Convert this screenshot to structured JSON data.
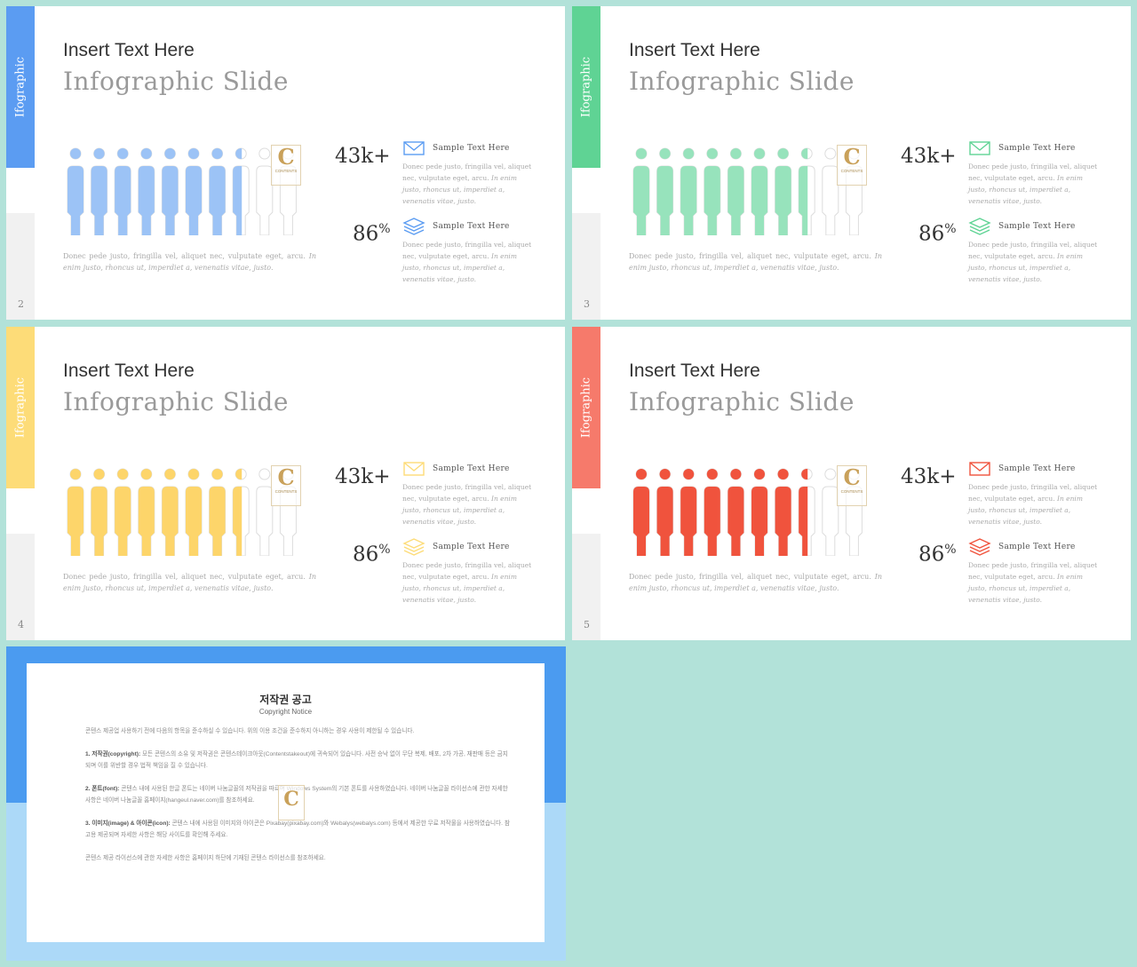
{
  "slides": [
    {
      "number": "2",
      "side_label": "Ifographic",
      "accent": "#5b9cf2",
      "accent_light": "#9cc3f6",
      "title": "Insert Text Here",
      "subtitle": "Infographic Slide",
      "people_filled": 7.5,
      "people_total": 10,
      "stat1": "43k+",
      "stat2_num": "86",
      "stat2_unit": "%",
      "desc_plain": "Donec pede justo, fringilla vel, aliquet nec, vulputate eget, arcu. ",
      "desc_italic": "In enim justo, rhoncus ut, imperdiet a, venenatis vitae, justo.",
      "items": [
        {
          "icon": "mail-icon",
          "title": "Sample Text Here",
          "plain": "Donec pede justo, fringilla vel, aliquet nec, vulputate eget, arcu. ",
          "italic": "In enim justo, rhoncus ut, imperdiet a, venenatis vitae, justo."
        },
        {
          "icon": "layers-icon",
          "title": "Sample Text Here",
          "plain": "Donec pede justo, fringilla vel, aliquet nec, vulputate eget, arcu. ",
          "italic": "In enim justo, rhoncus ut, imperdiet a, venenatis vitae, justo."
        }
      ]
    },
    {
      "number": "3",
      "side_label": "Ifographic",
      "accent": "#5fd394",
      "accent_light": "#97e3bc",
      "title": "Insert Text Here",
      "subtitle": "Infographic Slide",
      "people_filled": 7.5,
      "people_total": 10,
      "stat1": "43k+",
      "stat2_num": "86",
      "stat2_unit": "%",
      "desc_plain": "Donec pede justo, fringilla vel, aliquet nec, vulputate eget, arcu. ",
      "desc_italic": "In enim justo, rhoncus ut, imperdiet a, venenatis vitae, justo.",
      "items": [
        {
          "icon": "mail-icon",
          "title": "Sample Text Here",
          "plain": "Donec pede justo, fringilla vel, aliquet nec, vulputate eget, arcu. ",
          "italic": "In enim justo, rhoncus ut, imperdiet a, venenatis vitae, justo."
        },
        {
          "icon": "layers-icon",
          "title": "Sample Text Here",
          "plain": "Donec pede justo, fringilla vel, aliquet nec, vulputate eget, arcu. ",
          "italic": "In enim justo, rhoncus ut, imperdiet a, venenatis vitae, justo."
        }
      ]
    },
    {
      "number": "4",
      "side_label": "Ifographic",
      "accent": "#fddc78",
      "accent_light": "#fdd56a",
      "title": "Insert Text Here",
      "subtitle": "Infographic Slide",
      "people_filled": 7.5,
      "people_total": 10,
      "stat1": "43k+",
      "stat2_num": "86",
      "stat2_unit": "%",
      "desc_plain": "Donec pede justo, fringilla vel, aliquet nec, vulputate eget, arcu. ",
      "desc_italic": "In enim justo, rhoncus ut, imperdiet a, venenatis vitae, justo.",
      "items": [
        {
          "icon": "mail-icon",
          "title": "Sample Text Here",
          "plain": "Donec pede justo, fringilla vel, aliquet nec, vulputate eget, arcu. ",
          "italic": "In enim justo, rhoncus ut, imperdiet a, venenatis vitae, justo."
        },
        {
          "icon": "layers-icon",
          "title": "Sample Text Here",
          "plain": "Donec pede justo, fringilla vel, aliquet nec, vulputate eget, arcu. ",
          "italic": "In enim justo, rhoncus ut, imperdiet a, venenatis vitae, justo."
        }
      ]
    },
    {
      "number": "5",
      "side_label": "Ifographic",
      "accent": "#f67a6b",
      "accent_light": "#f0533d",
      "title": "Insert Text Here",
      "subtitle": "Infographic Slide",
      "people_filled": 7.5,
      "people_total": 10,
      "stat1": "43k+",
      "stat2_num": "86",
      "stat2_unit": "%",
      "desc_plain": "Donec pede justo, fringilla vel, aliquet nec, vulputate eget, arcu. ",
      "desc_italic": "In enim justo, rhoncus ut, imperdiet a, venenatis vitae, justo.",
      "items": [
        {
          "icon": "mail-icon",
          "title": "Sample Text Here",
          "plain": "Donec pede justo, fringilla vel, aliquet nec, vulputate eget, arcu. ",
          "italic": "In enim justo, rhoncus ut, imperdiet a, venenatis vitae, justo."
        },
        {
          "icon": "layers-icon",
          "title": "Sample Text Here",
          "plain": "Donec pede justo, fringilla vel, aliquet nec, vulputate eget, arcu. ",
          "italic": "In enim justo, rhoncus ut, imperdiet a, venenatis vitae, justo."
        }
      ]
    }
  ],
  "logo": {
    "letter": "C",
    "text": "CONTENTS"
  },
  "copyright": {
    "title": "저작권 공고",
    "subtitle": "Copyright Notice",
    "intro": "콘텐스 제공업 사용하기 전에 다음의 항목을 준수하실 수 있습니다. 위의 이용 조건을 준수하지 아니하는 경우 사용이 제한될 수 있습니다.",
    "p1_head": "1. 저작권(copyright):",
    "p1": " 모든 콘텐스의 소유 및 저작권은 콘텐스테이크아웃(Contentstakeout)에 귀속되어 있습니다. 사전 승낙 없이 무단 복제, 배포, 2차 가공, 재판매 등은 금지되며 이를 위반할 경우 법적 책임을 질 수 있습니다.",
    "p2_head": "2. 폰트(font):",
    "p2": " 콘텐스 내에 사용된 한글 폰트는 네이버 나눔글꼴의 저작권을 따르며 Windows System의 기본 폰트를 사용하였습니다. 네이버 나눔글꼴 라이선스에 관한 자세한 사항은 네이버 나눔글꼴 홈페이지(hangeul.naver.com)를 참조하세요.",
    "p3_head": "3. 이미지(image) & 아이콘(icon):",
    "p3": " 콘텐스 내에 사용된 이미지와 아이콘은 Pixabay(pixabay.com)와 Webalys(webalys.com) 등에서 제공한 무료 저작물을 사용하였습니다. 참고용 제공되며 자세한 사항은 해당 사이트를 확인해 주세요.",
    "footer": "콘텐스 제공 라이선스에 관한 자세한 사항은 홈페이지 하단에 기재된 콘텐스 라이선스를 참조하세요."
  }
}
